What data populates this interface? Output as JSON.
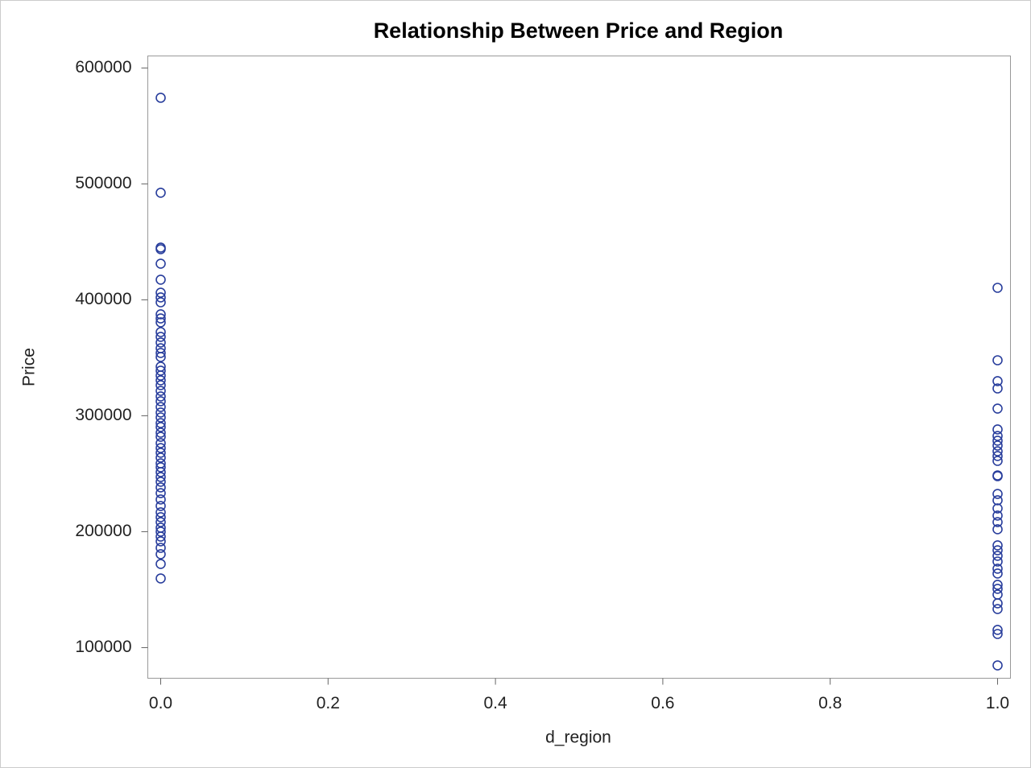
{
  "chart_data": {
    "type": "scatter",
    "title": "Relationship Between Price and Region",
    "xlabel": "d_region",
    "ylabel": "Price",
    "x": [
      0,
      0,
      0,
      0,
      0,
      0,
      0,
      0,
      0,
      0,
      0,
      0,
      0,
      0,
      0,
      0,
      0,
      0,
      0,
      0,
      0,
      0,
      0,
      0,
      0,
      0,
      0,
      0,
      0,
      0,
      0,
      0,
      0,
      0,
      0,
      0,
      0,
      0,
      0,
      0,
      0,
      0,
      0,
      0,
      0,
      0,
      0,
      0,
      0,
      0,
      0,
      0,
      0,
      0,
      0,
      0,
      0,
      1,
      1,
      1,
      1,
      1,
      1,
      1,
      1,
      1,
      1,
      1,
      1,
      1,
      1,
      1,
      1,
      1,
      1,
      1,
      1,
      1,
      1,
      1,
      1,
      1,
      1,
      1,
      1,
      1,
      1,
      1,
      1,
      1,
      1
    ],
    "values": [
      574300,
      492400,
      445100,
      443700,
      431200,
      417400,
      406200,
      402100,
      397900,
      387500,
      384000,
      380600,
      372200,
      368100,
      363200,
      358300,
      354200,
      350700,
      342400,
      338900,
      334700,
      330600,
      326400,
      321500,
      316700,
      312500,
      307600,
      302800,
      298600,
      293700,
      290300,
      285400,
      281900,
      276400,
      272200,
      268100,
      263900,
      259000,
      255600,
      251400,
      247200,
      243100,
      238200,
      233300,
      227800,
      222200,
      216700,
      212500,
      208300,
      203500,
      200000,
      195800,
      191700,
      186100,
      180600,
      172200,
      159700,
      410400,
      347900,
      329900,
      323600,
      306200,
      288200,
      282600,
      278500,
      274300,
      269400,
      265300,
      261100,
      248600,
      247900,
      232600,
      227100,
      220100,
      213900,
      208300,
      202100,
      188200,
      184000,
      179200,
      174300,
      168100,
      163900,
      154200,
      150700,
      145800,
      138200,
      133300,
      115300,
      111800,
      84700
    ],
    "color": "#2a3f9d",
    "xlim": [
      -0.0154,
      1.0154
    ],
    "xticks": [
      {
        "value": 0,
        "label": "0.0"
      },
      0.2,
      0.4,
      0.6,
      0.8,
      {
        "value": 1,
        "label": "1.0"
      }
    ],
    "ylim": [
      73600,
      610400
    ],
    "yticks": [
      100000,
      200000,
      300000,
      400000,
      500000,
      600000
    ]
  }
}
